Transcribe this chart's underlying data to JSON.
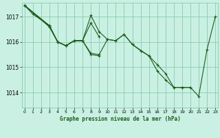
{
  "title": "Graphe pression niveau de la mer (hPa)",
  "background_color": "#caf0e4",
  "grid_color": "#88ccaa",
  "line_color": "#1a5c1a",
  "x_ticks": [
    0,
    1,
    2,
    3,
    4,
    5,
    6,
    7,
    8,
    9,
    10,
    11,
    12,
    13,
    14,
    15,
    16,
    17,
    18,
    19,
    20,
    21,
    22,
    23
  ],
  "y_ticks": [
    1014,
    1015,
    1016,
    1017
  ],
  "ylim": [
    1013.4,
    1017.55
  ],
  "xlim": [
    -0.3,
    23.3
  ],
  "lines": [
    {
      "points": [
        [
          0,
          1017.45
        ],
        [
          1,
          1017.1
        ],
        [
          3,
          1016.65
        ],
        [
          4,
          1016.0
        ],
        [
          5,
          1015.85
        ],
        [
          6,
          1016.05
        ],
        [
          7,
          1016.05
        ],
        [
          8,
          1016.75
        ],
        [
          9,
          1016.2
        ]
      ],
      "connected": true
    },
    {
      "points": [
        [
          0,
          1017.45
        ],
        [
          3,
          1016.65
        ],
        [
          4,
          1016.0
        ],
        [
          5,
          1015.85
        ],
        [
          6,
          1016.05
        ],
        [
          7,
          1016.05
        ],
        [
          8,
          1017.05
        ],
        [
          9,
          1016.4
        ],
        [
          10,
          1016.1
        ],
        [
          11,
          1016.05
        ],
        [
          12,
          1016.3
        ],
        [
          13,
          1015.9
        ],
        [
          14,
          1015.65
        ],
        [
          15,
          1015.45
        ],
        [
          16,
          1015.1
        ],
        [
          17,
          1014.75
        ],
        [
          18,
          1014.2
        ],
        [
          19,
          1014.2
        ],
        [
          20,
          1014.2
        ],
        [
          21,
          1013.85
        ],
        [
          22,
          1015.7
        ],
        [
          23,
          1017.0
        ]
      ],
      "connected": true
    },
    {
      "points": [
        [
          0,
          1017.45
        ],
        [
          3,
          1016.6
        ],
        [
          4,
          1016.0
        ],
        [
          5,
          1015.85
        ],
        [
          6,
          1016.05
        ],
        [
          7,
          1016.05
        ],
        [
          8,
          1015.55
        ],
        [
          9,
          1015.5
        ],
        [
          10,
          1016.1
        ],
        [
          11,
          1016.05
        ],
        [
          12,
          1016.3
        ],
        [
          13,
          1015.9
        ],
        [
          15,
          1015.45
        ],
        [
          16,
          1014.85
        ],
        [
          17,
          1014.5
        ],
        [
          18,
          1014.2
        ],
        [
          19,
          1014.2
        ],
        [
          20,
          1014.2
        ]
      ],
      "connected": true
    },
    {
      "points": [
        [
          0,
          1017.45
        ],
        [
          3,
          1016.6
        ],
        [
          4,
          1016.0
        ],
        [
          5,
          1015.85
        ],
        [
          6,
          1016.05
        ],
        [
          7,
          1016.05
        ],
        [
          8,
          1015.5
        ],
        [
          9,
          1015.45
        ]
      ],
      "connected": true
    }
  ]
}
